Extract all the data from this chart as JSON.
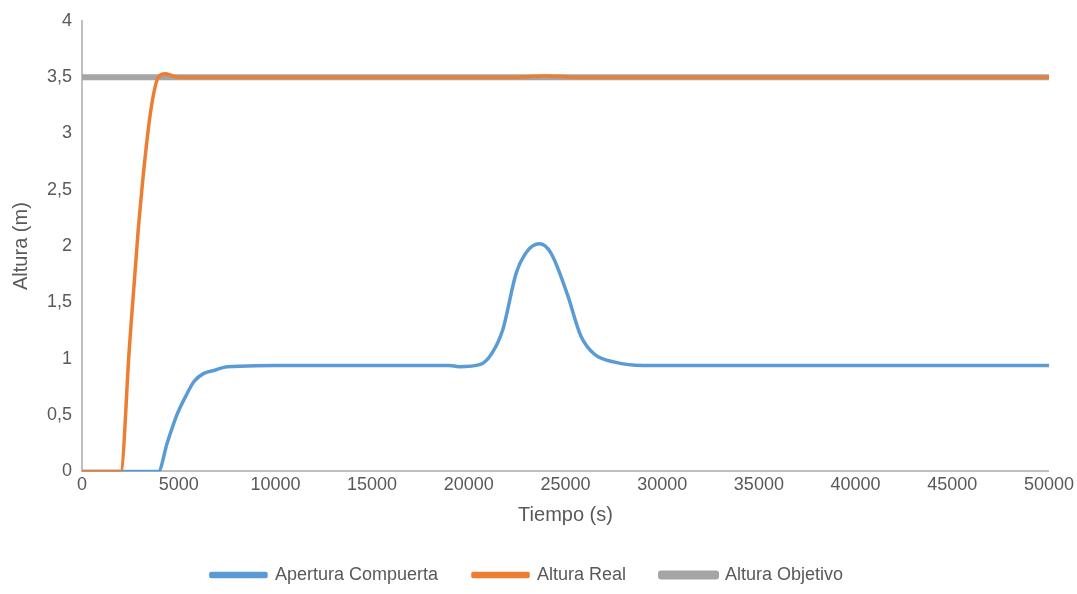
{
  "chart_data": {
    "type": "line",
    "xlabel": "Tiempo (s)",
    "ylabel": "Altura (m)",
    "xlim": [
      0,
      50000
    ],
    "xticks": [
      0,
      5000,
      10000,
      15000,
      20000,
      25000,
      30000,
      35000,
      40000,
      45000,
      50000
    ],
    "ylim": [
      0,
      4
    ],
    "yticks": [
      {
        "value": 0,
        "label": "0"
      },
      {
        "value": 0.5,
        "label": "0,5"
      },
      {
        "value": 1,
        "label": "1"
      },
      {
        "value": 1.5,
        "label": "1,5"
      },
      {
        "value": 2,
        "label": "2"
      },
      {
        "value": 2.5,
        "label": "2,5"
      },
      {
        "value": 3,
        "label": "3"
      },
      {
        "value": 3.5,
        "label": "3,5"
      },
      {
        "value": 4,
        "label": "4"
      }
    ],
    "grid": false,
    "legend": "bottom",
    "marker": "none",
    "series": [
      {
        "name": "Apertura Compuerta",
        "color": "#5b9bd5",
        "x": [
          0,
          3000,
          3700,
          3950,
          4400,
          4900,
          5400,
          5800,
          6300,
          6900,
          7500,
          10000,
          19000,
          19500,
          20600,
          21200,
          21760,
          22450,
          23000,
          23650,
          24240,
          25080,
          25800,
          26500,
          27550,
          29000,
          50000
        ],
        "values": [
          0,
          0,
          0,
          0,
          0.25,
          0.5,
          0.68,
          0.8,
          0.87,
          0.9,
          0.93,
          0.94,
          0.94,
          0.93,
          0.95,
          1.05,
          1.26,
          1.76,
          1.95,
          2.02,
          1.94,
          1.58,
          1.2,
          1.04,
          0.97,
          0.94,
          0.94
        ]
      },
      {
        "name": "Altura Real",
        "color": "#ed7d31",
        "x": [
          0,
          1200,
          1700,
          2000,
          2450,
          2900,
          3400,
          3700,
          3950,
          4300,
          4700,
          5000,
          22500,
          24000,
          25500,
          50000
        ],
        "values": [
          0,
          0,
          0,
          0,
          1.1,
          2.13,
          3,
          3.35,
          3.5,
          3.53,
          3.51,
          3.5,
          3.5,
          3.51,
          3.5,
          3.5
        ]
      },
      {
        "name": "Altura Objetivo",
        "color": "#a5a5a5",
        "x": [
          0,
          50000
        ],
        "values": [
          3.5,
          3.5
        ]
      }
    ]
  }
}
